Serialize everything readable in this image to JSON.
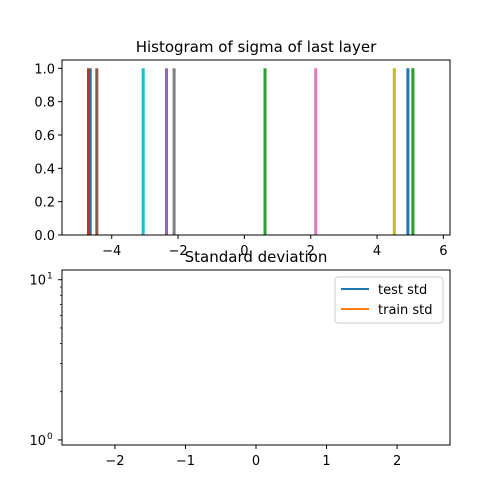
{
  "chart_data": [
    {
      "type": "bar",
      "title": "Histogram of sigma of last layer",
      "xlabel": "",
      "ylabel": "",
      "xlim": [
        -5.5,
        6.2
      ],
      "ylim": [
        0.0,
        1.05
      ],
      "xticks": [
        -4,
        -2,
        0,
        2,
        4,
        6
      ],
      "xtick_labels": [
        "−4",
        "−2",
        "0",
        "2",
        "4",
        "6"
      ],
      "yticks": [
        0.0,
        0.2,
        0.4,
        0.6,
        0.8,
        1.0
      ],
      "ytick_labels": [
        "0.0",
        "0.2",
        "0.4",
        "0.6",
        "0.8",
        "1.0"
      ],
      "series": [
        {
          "x": -4.65,
          "value": 1.0,
          "color": "#1f77b4"
        },
        {
          "x": 5.08,
          "value": 1.0,
          "color": "#ff7f0e"
        },
        {
          "x": 0.62,
          "value": 1.0,
          "color": "#2ca02c"
        },
        {
          "x": -4.7,
          "value": 1.0,
          "color": "#d62728"
        },
        {
          "x": -2.35,
          "value": 1.0,
          "color": "#9467bd"
        },
        {
          "x": -4.45,
          "value": 1.0,
          "color": "#8c564b"
        },
        {
          "x": 2.15,
          "value": 1.0,
          "color": "#e377c2"
        },
        {
          "x": -2.12,
          "value": 1.0,
          "color": "#7f7f7f"
        },
        {
          "x": 4.52,
          "value": 1.0,
          "color": "#bcbd22"
        },
        {
          "x": -3.05,
          "value": 1.0,
          "color": "#17becf"
        },
        {
          "x": 4.93,
          "value": 1.0,
          "color": "#1f77b4"
        },
        {
          "x": 5.08,
          "value": 1.0,
          "color": "#2ca02c"
        }
      ]
    },
    {
      "type": "line",
      "title": "Standard deviation",
      "xlabel": "",
      "ylabel": "",
      "yscale": "log",
      "xlim": [
        -2.75,
        2.75
      ],
      "ylim": [
        0.93,
        11.5
      ],
      "xticks": [
        -2,
        -1,
        0,
        1,
        2
      ],
      "xtick_labels": [
        "−2",
        "−1",
        "0",
        "1",
        "2"
      ],
      "yticks": [
        1,
        10
      ],
      "ytick_labels": [
        "10^0",
        "10^1"
      ],
      "legend_position": "top-right",
      "series": [
        {
          "name": "test std",
          "color": "#1f77b4",
          "x": [],
          "y": []
        },
        {
          "name": "train std",
          "color": "#ff7f0e",
          "x": [],
          "y": []
        }
      ]
    }
  ]
}
